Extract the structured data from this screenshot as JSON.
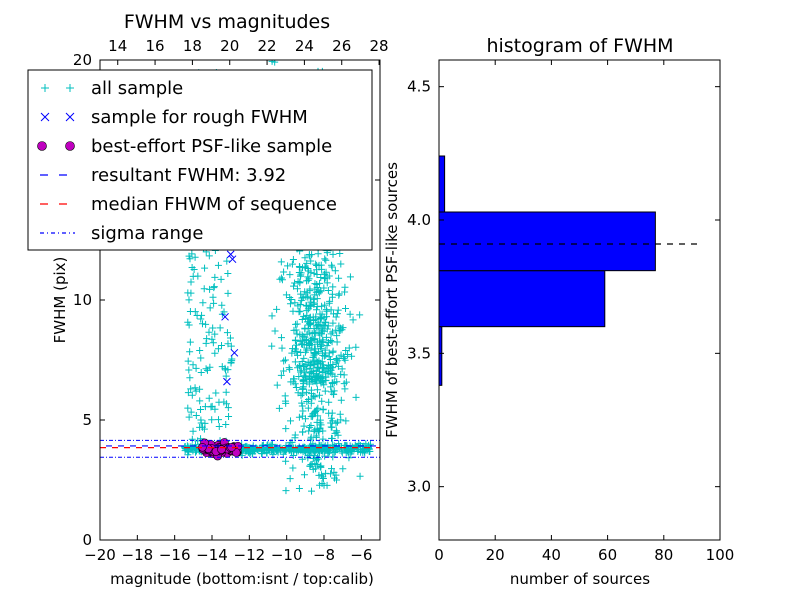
{
  "chart_data": [
    {
      "type": "scatter",
      "title": "FWHM vs magnitudes",
      "xlabel": "magnitude (bottom:isnt / top:calib)",
      "ylabel": "FWHM (pix)",
      "xlim": [
        -20,
        -5
      ],
      "ylim": [
        0,
        20
      ],
      "xticks": [
        "−20",
        "−18",
        "−16",
        "−14",
        "−12",
        "−10",
        "−8",
        "−6"
      ],
      "yticks": [
        "0",
        "5",
        "10",
        "15",
        "20"
      ],
      "top_axis": {
        "label_positions": [
          -19.05,
          -17.05,
          -15.05,
          -13.05,
          -11.05,
          -9.05,
          -7.05,
          -5.05
        ],
        "ticks": [
          "14",
          "16",
          "18",
          "20",
          "22",
          "24",
          "26",
          "28"
        ]
      },
      "legend_position": "upper-left",
      "legend": [
        {
          "label": "all sample",
          "marker": "+",
          "color": "#00bfbf"
        },
        {
          "label": "sample for rough FWHM",
          "marker": "x",
          "color": "#0000ff"
        },
        {
          "label": "best-effort PSF-like sample",
          "marker": "o",
          "color": "#bf00bf"
        },
        {
          "label": "resultant FWHM: 3.92",
          "line": "dashed",
          "color": "#0000ff"
        },
        {
          "label": "median FHWM of sequence",
          "line": "dashed",
          "color": "#ff0000"
        },
        {
          "label": "sigma range",
          "line": "dashdot",
          "color": "#0000ff"
        }
      ],
      "hlines": {
        "resultant_fwhm": 3.92,
        "median_fwhm": 3.85,
        "sigma_range": [
          3.45,
          4.15
        ]
      },
      "series": [
        {
          "name": "all sample",
          "description": "narrow stellar locus at FWHM 3.6-4.0 from -15.5 to -5.5, vertical plume near -14.5 to -13 rising to ~19, broad fan of faint sources from -10 to -6 reaching ~20",
          "locus": {
            "x": [
              -15.5,
              -5.5
            ],
            "y": [
              3.6,
              4.0
            ]
          },
          "plume": {
            "x": [
              -15.3,
              -12.9
            ],
            "y": [
              4.0,
              19.5
            ]
          },
          "fan": {
            "x": [
              -10.3,
              -5.6
            ],
            "y": [
              2.0,
              20.0
            ]
          }
        },
        {
          "name": "sample for rough FWHM",
          "x": [
            -13.2,
            -13.3,
            -12.8,
            -12.9,
            -13.0
          ],
          "y": [
            6.6,
            9.3,
            7.8,
            11.7,
            11.9
          ]
        },
        {
          "name": "best-effort PSF-like sample",
          "x_range": [
            -14.6,
            -12.6
          ],
          "y_range": [
            3.6,
            4.0
          ]
        }
      ]
    },
    {
      "type": "bar",
      "orientation": "horizontal",
      "title": "histogram of FWHM",
      "xlabel": "number of sources",
      "ylabel": "FWHM of best-effort PSF-like sources",
      "xlim": [
        0,
        100
      ],
      "ylim": [
        2.8,
        4.6
      ],
      "xticks": [
        "0",
        "20",
        "40",
        "60",
        "80",
        "100"
      ],
      "yticks": [
        "3.0",
        "3.5",
        "4.0",
        "4.5"
      ],
      "bin_edges": [
        3.38,
        3.6,
        3.81,
        4.03,
        4.24
      ],
      "counts": [
        1,
        59,
        77,
        2
      ],
      "bar_color": "#0000ff",
      "median_line": 3.91
    }
  ]
}
